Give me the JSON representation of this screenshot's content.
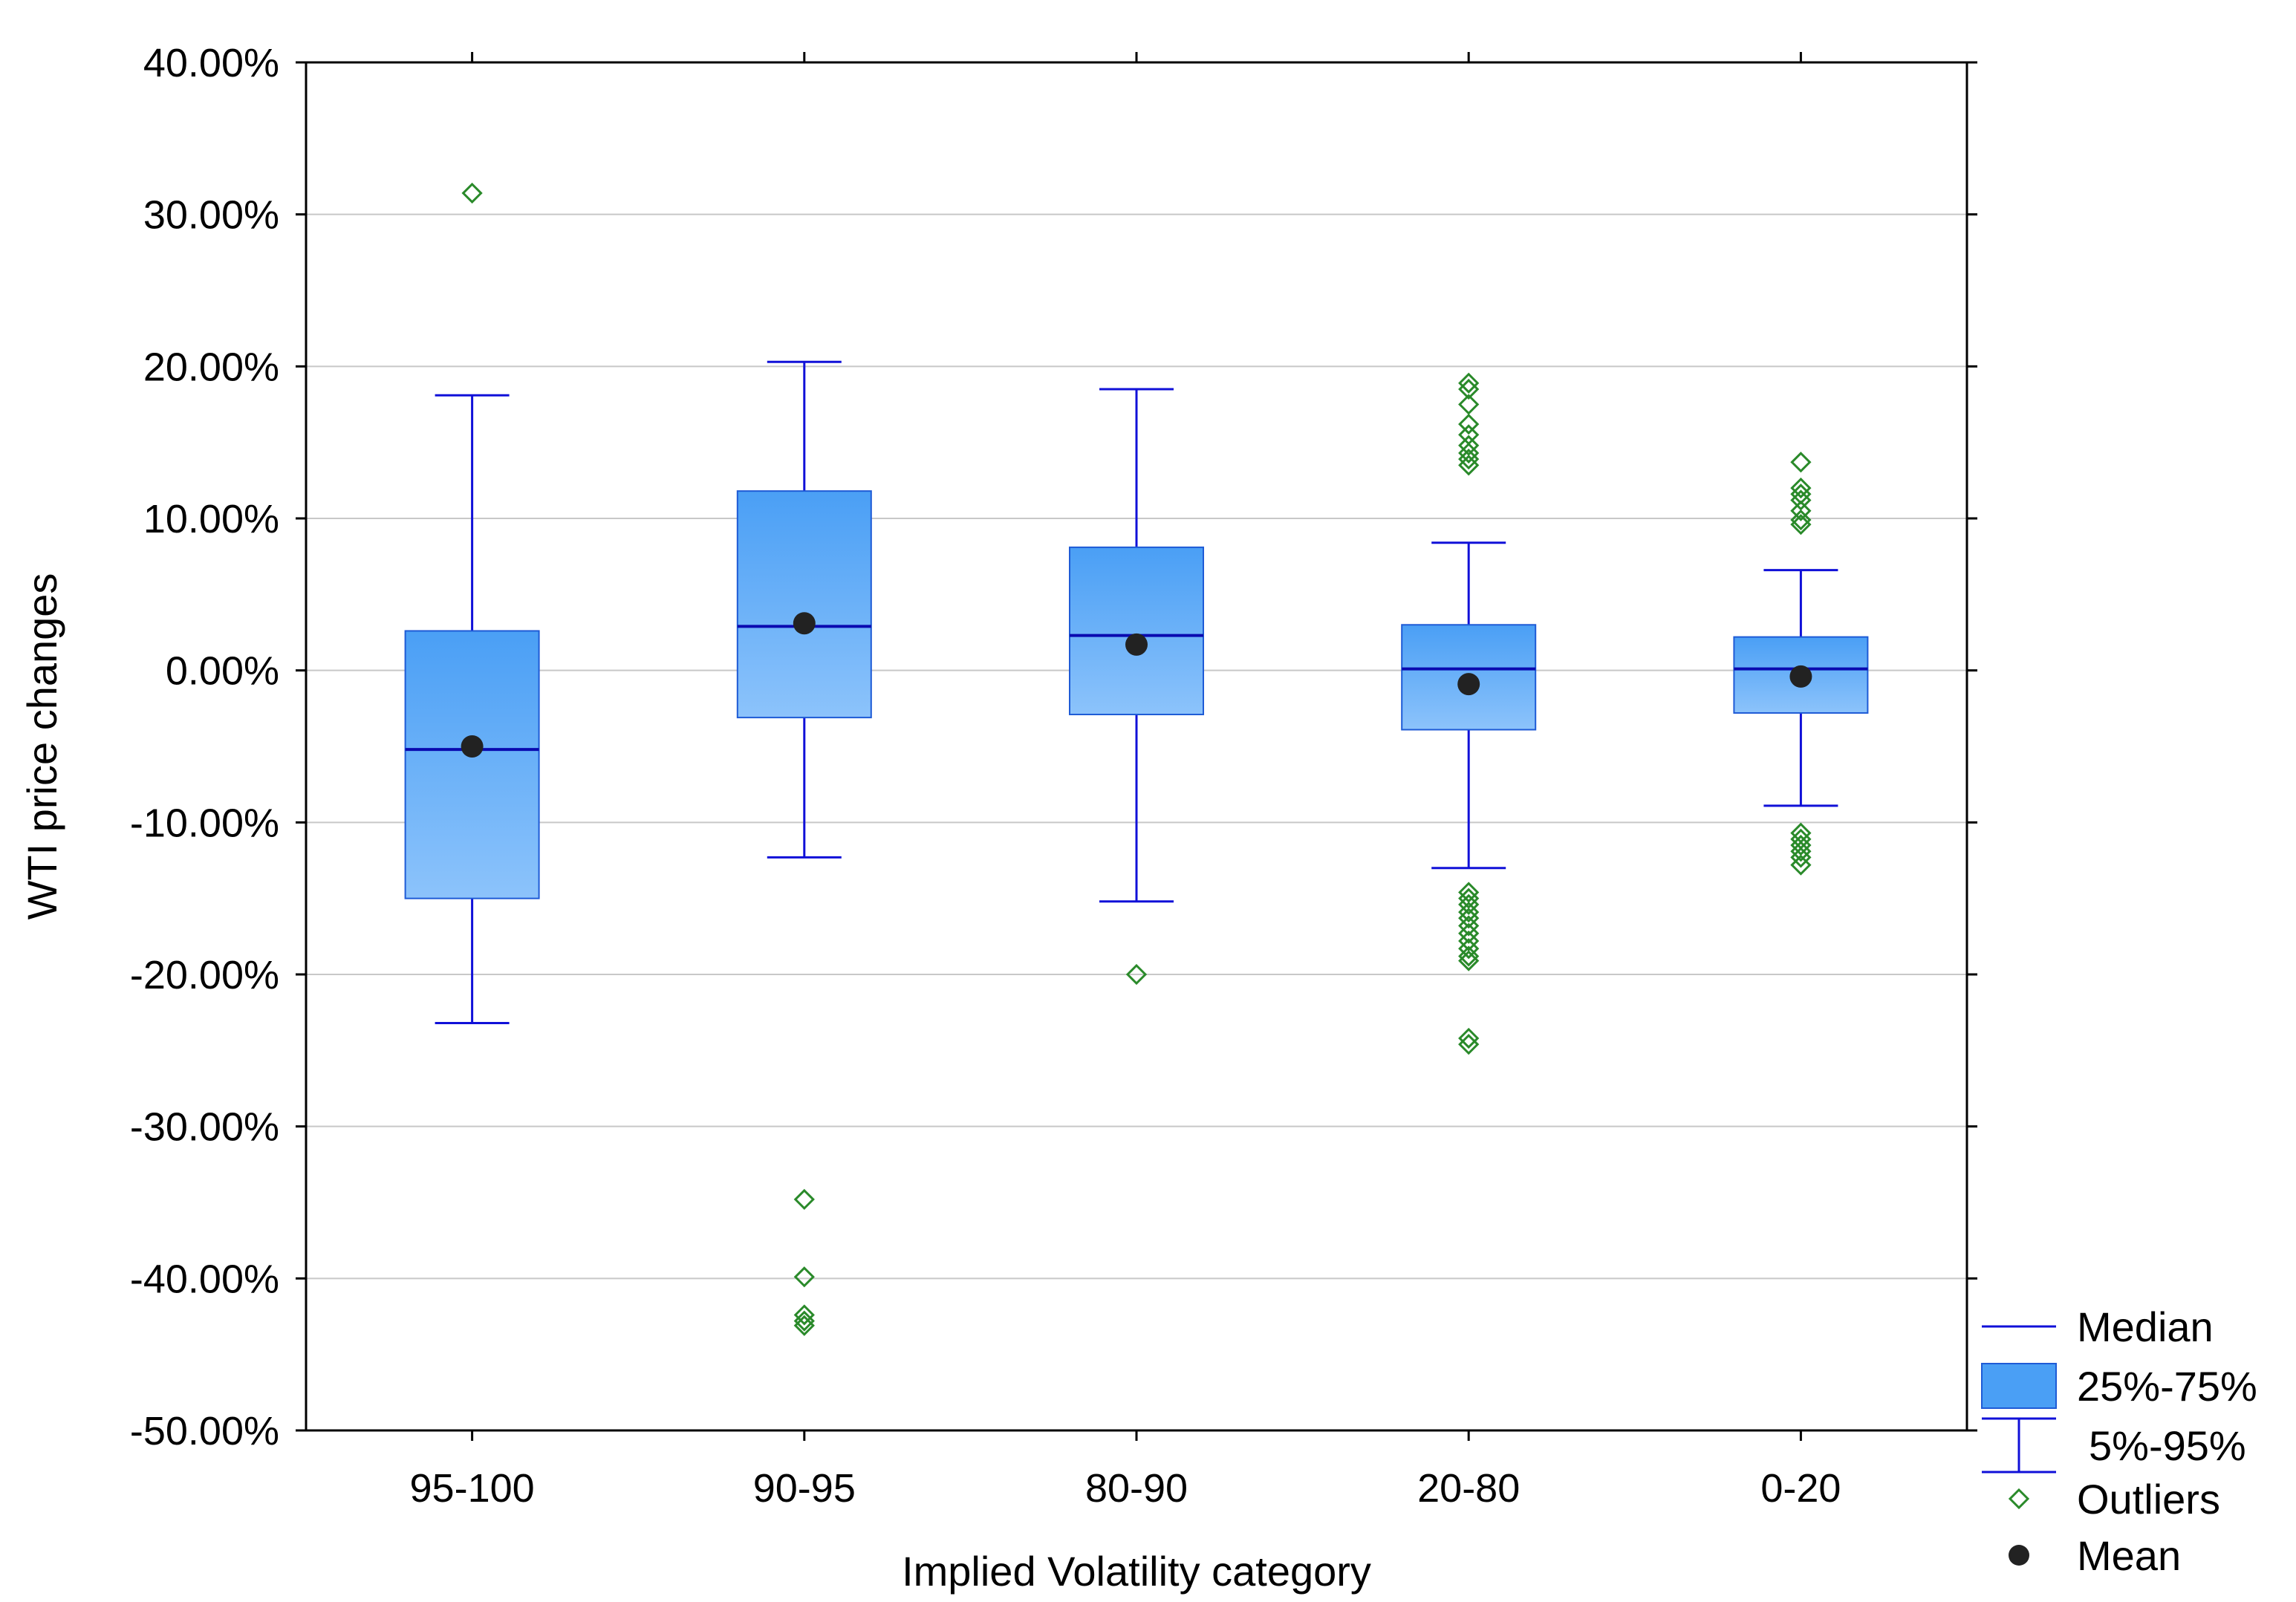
{
  "chart_data": {
    "type": "boxplot",
    "title": "",
    "xlabel": "Implied Volatility category",
    "ylabel": "WTI price changes",
    "ylim": [
      -50,
      40
    ],
    "yticks": [
      40,
      30,
      20,
      10,
      0,
      -10,
      -20,
      -30,
      -40,
      -50
    ],
    "ytick_labels": [
      "40.00%",
      "30.00%",
      "20.00%",
      "10.00%",
      "0.00%",
      "-10.00%",
      "-20.00%",
      "-30.00%",
      "-40.00%",
      "-50.00%"
    ],
    "categories": [
      "95-100",
      "90-95",
      "80-90",
      "20-80",
      "0-20"
    ],
    "grid": true,
    "legend_position": "bottom-right-outside",
    "legend": [
      {
        "key": "median",
        "label": "Median"
      },
      {
        "key": "iqr",
        "label": "25%-75%"
      },
      {
        "key": "whisker",
        "label": "5%-95%"
      },
      {
        "key": "outliers",
        "label": "Outliers"
      },
      {
        "key": "mean",
        "label": "Mean"
      }
    ],
    "series": [
      {
        "category": "95-100",
        "whisker_low": -23.2,
        "q1": -15.0,
        "median": -5.2,
        "q3": 2.6,
        "whisker_high": 18.1,
        "mean": -5.0,
        "outliers": [
          31.4
        ]
      },
      {
        "category": "90-95",
        "whisker_low": -12.3,
        "q1": -3.1,
        "median": 2.9,
        "q3": 11.8,
        "whisker_high": 20.3,
        "mean": 3.1,
        "outliers": [
          -34.8,
          -39.9,
          -42.4,
          -42.8,
          -43.1
        ]
      },
      {
        "category": "80-90",
        "whisker_low": -15.2,
        "q1": -2.9,
        "median": 2.3,
        "q3": 8.1,
        "whisker_high": 18.5,
        "mean": 1.7,
        "outliers": [
          -20.0
        ]
      },
      {
        "category": "20-80",
        "whisker_low": -13.0,
        "q1": -3.9,
        "median": 0.1,
        "q3": 3.0,
        "whisker_high": 8.4,
        "mean": -0.9,
        "outliers": [
          18.9,
          18.5,
          17.5,
          16.2,
          15.5,
          14.8,
          14.3,
          13.9,
          13.5,
          -14.6,
          -15.0,
          -15.4,
          -15.9,
          -16.3,
          -16.8,
          -17.3,
          -17.8,
          -18.3,
          -18.8,
          -19.1,
          -24.2,
          -24.6
        ]
      },
      {
        "category": "0-20",
        "whisker_low": -8.9,
        "q1": -2.8,
        "median": 0.1,
        "q3": 2.2,
        "whisker_high": 6.6,
        "mean": -0.4,
        "outliers": [
          13.7,
          12.0,
          11.6,
          11.2,
          10.5,
          9.9,
          9.6,
          -10.7,
          -11.1,
          -11.5,
          -11.9,
          -12.3,
          -12.8
        ]
      }
    ],
    "colors": {
      "box_fill_top": "#4a9ff5",
      "box_fill_bottom": "#8cc3fb",
      "box_stroke": "#1e5bd6",
      "whisker": "#1010d8",
      "median": "#0a0ab0",
      "outlier": "#2a8a2a",
      "outlier_dense": "#0f7a0f",
      "mean": "#222222",
      "grid": "#c8c8c8",
      "axis": "#000000"
    }
  }
}
